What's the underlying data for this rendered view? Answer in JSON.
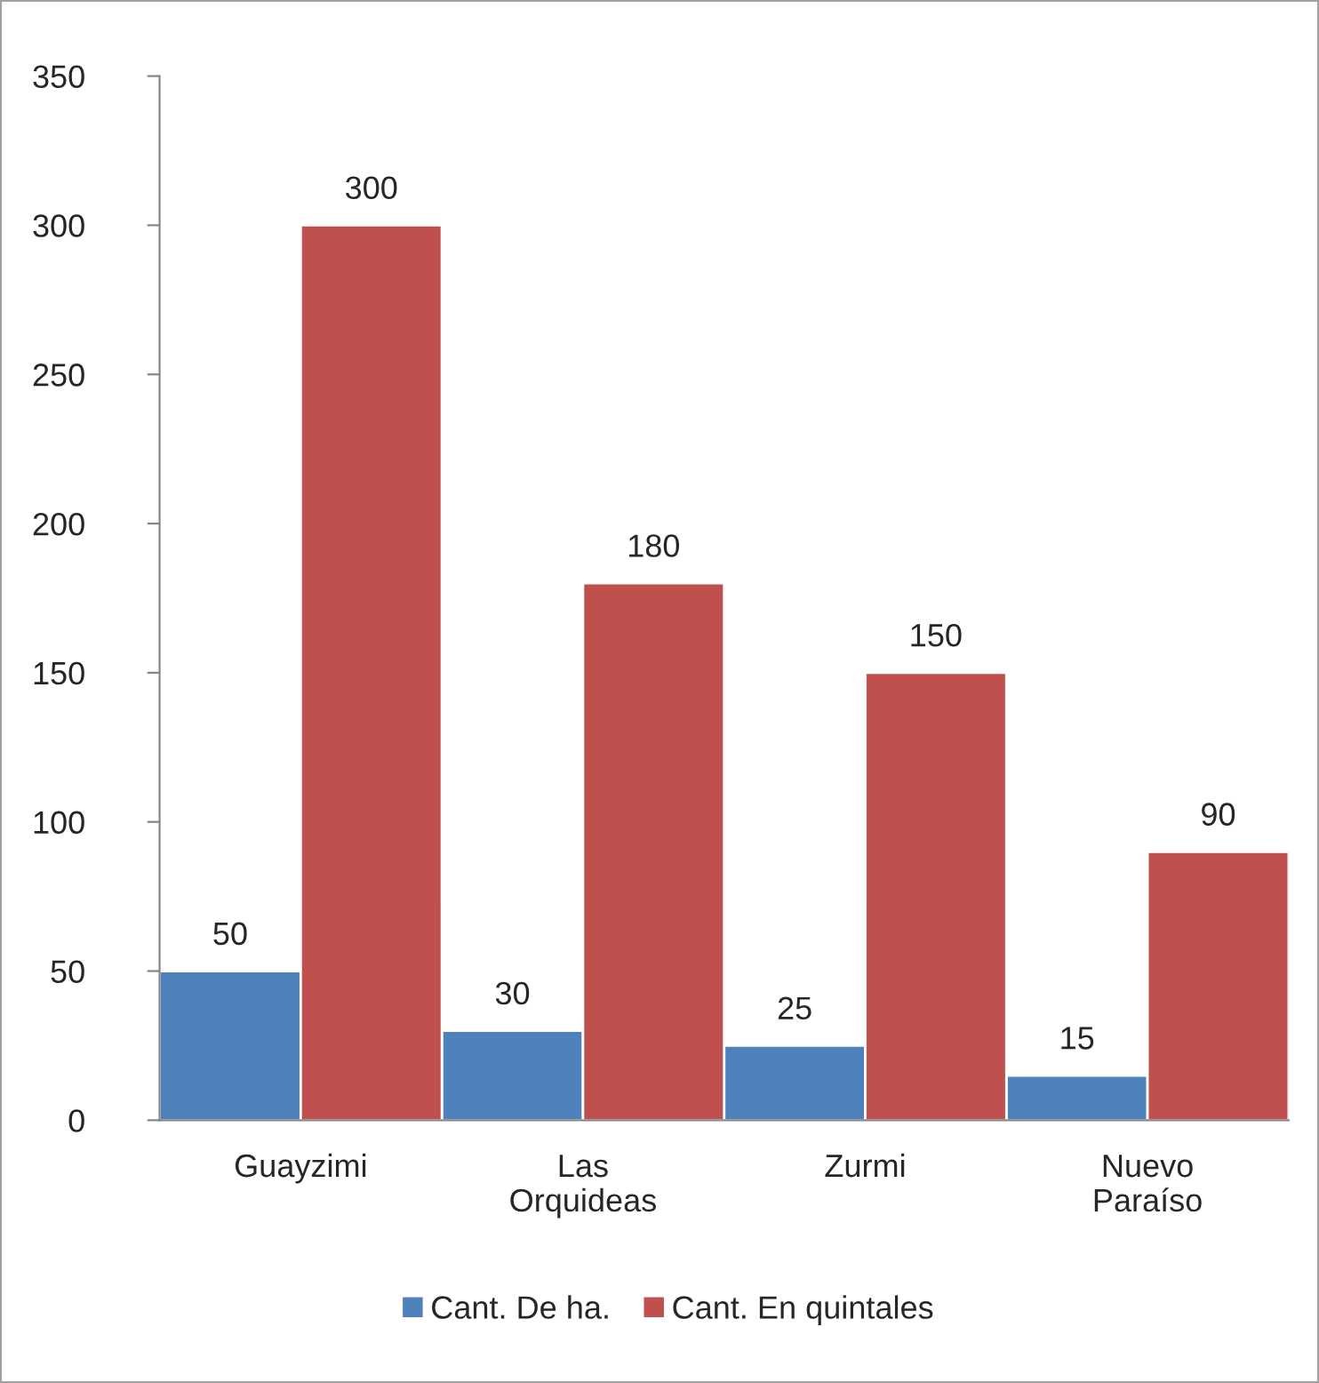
{
  "chart_data": {
    "type": "bar",
    "categories": [
      "Guayzimi",
      "Las\nOrquideas",
      "Zurmi",
      "Nuevo\nParaíso"
    ],
    "series": [
      {
        "name": "Cant. De ha.",
        "color": "#4f81bd",
        "values": [
          50,
          30,
          25,
          15
        ]
      },
      {
        "name": "Cant. En quintales",
        "color": "#c0504d",
        "values": [
          300,
          180,
          150,
          90
        ]
      }
    ],
    "ylim": [
      0,
      350
    ],
    "yticks": [
      0,
      50,
      100,
      150,
      200,
      250,
      300,
      350
    ],
    "data_labels": true,
    "grid": false,
    "legend": "bottom"
  }
}
